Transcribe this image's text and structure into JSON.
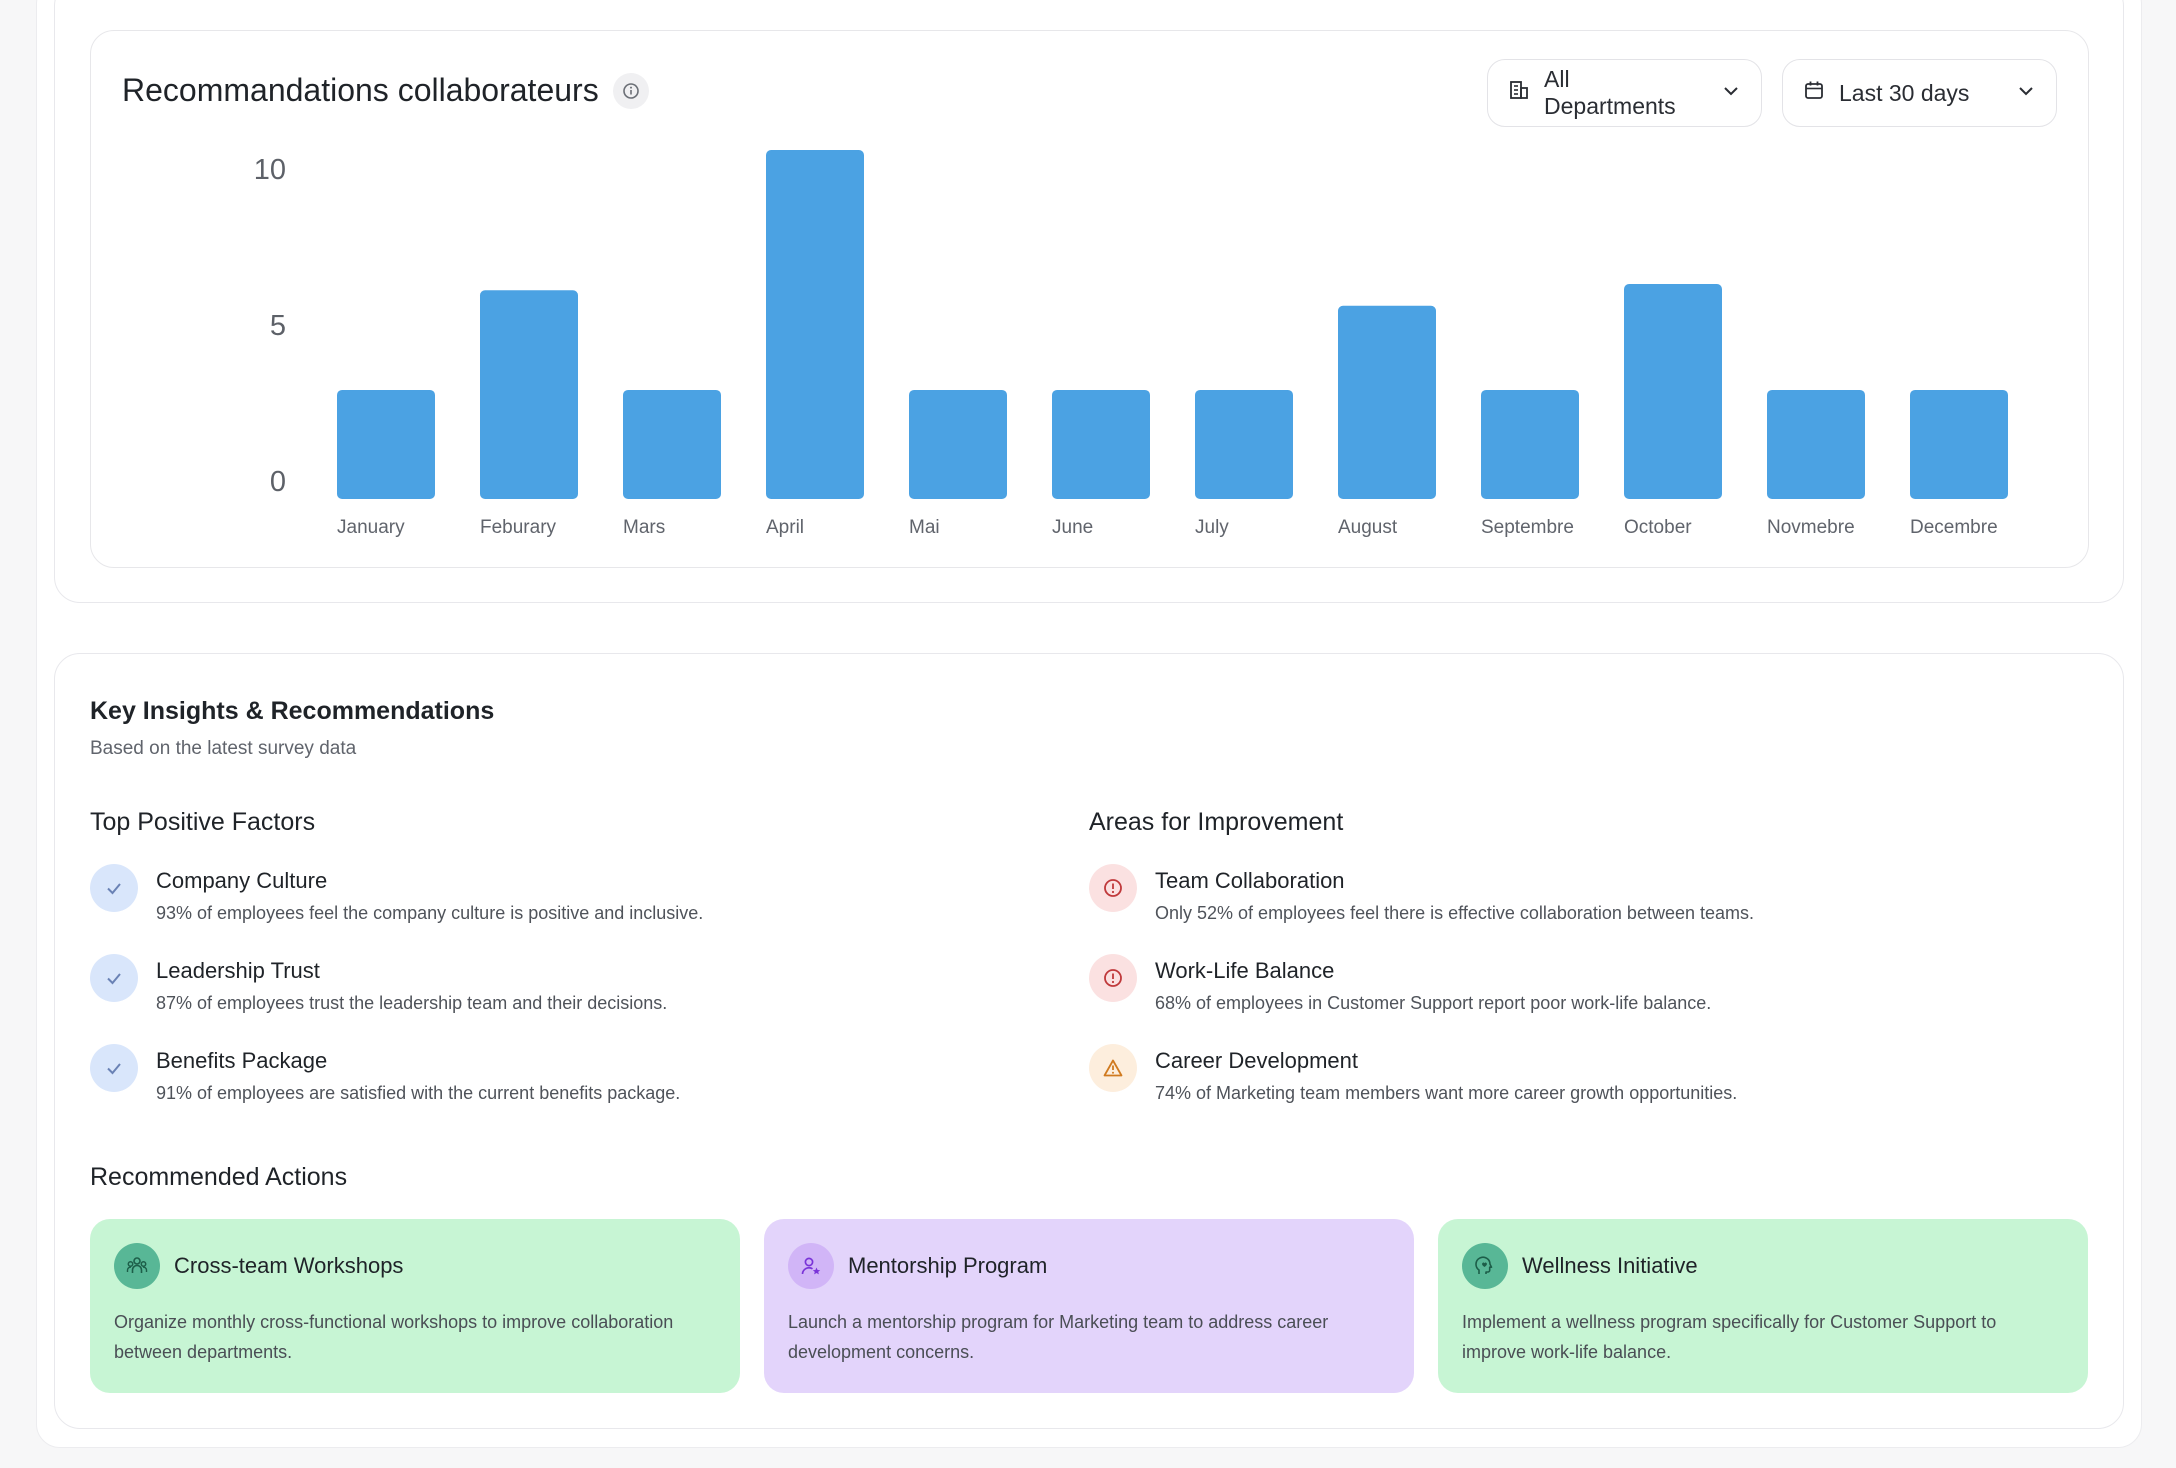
{
  "chart_section": {
    "title": "Recommandations collaborateurs",
    "department_filter": "All Departments",
    "date_filter": "Last 30 days"
  },
  "chart_data": {
    "type": "bar",
    "categories": [
      "January",
      "Feburary",
      "Mars",
      "April",
      "Mai",
      "June",
      "July",
      "August",
      "Septembre",
      "October",
      "Novmebre",
      "Decembre"
    ],
    "values": [
      3.5,
      6.7,
      3.5,
      11.2,
      3.5,
      3.5,
      3.5,
      6.2,
      3.5,
      6.9,
      3.5,
      3.5
    ],
    "yticks": [
      0,
      5,
      10
    ],
    "ylim": [
      0,
      11.2
    ],
    "bar_color": "#4ba2e3",
    "grid": false,
    "legend": "none"
  },
  "insights": {
    "title": "Key Insights & Recommendations",
    "subtitle": "Based on the latest survey data",
    "positive": {
      "title": "Top Positive Factors",
      "items": [
        {
          "name": "Company Culture",
          "desc": "93% of employees feel the company culture is positive and inclusive."
        },
        {
          "name": "Leadership Trust",
          "desc": "87% of employees trust the leadership team and their decisions."
        },
        {
          "name": "Benefits Package",
          "desc": "91% of employees are satisfied with the current benefits package."
        }
      ]
    },
    "improvement": {
      "title": "Areas for Improvement",
      "items": [
        {
          "name": "Team Collaboration",
          "desc": "Only 52% of employees feel there is effective collaboration between teams."
        },
        {
          "name": "Work-Life Balance",
          "desc": "68% of employees in Customer Support report poor work-life balance."
        },
        {
          "name": "Career Development",
          "desc": "74% of Marketing team members want more career growth opportunities."
        }
      ]
    },
    "actions": {
      "title": "Recommended Actions",
      "items": [
        {
          "title": "Cross-team Workshops",
          "desc": "Organize monthly cross-functional workshops to improve collaboration between departments.",
          "icon": "team-icon",
          "color": "#c7f5d4"
        },
        {
          "title": "Mentorship Program",
          "desc": "Launch a mentorship program for Marketing team to address career development concerns.",
          "icon": "mentor-icon",
          "color": "#e3d4fb"
        },
        {
          "title": "Wellness Initiative",
          "desc": "Implement a wellness program specifically for Customer Support to improve work-life balance.",
          "icon": "wellness-icon",
          "color": "#c7f5d4"
        }
      ]
    }
  },
  "colors": {
    "positive_badge": "#d9e6fb",
    "negative_badge": "#fbe1e1",
    "warning_badge": "#fdeedd",
    "accent_blue": "#4ba2e3"
  }
}
